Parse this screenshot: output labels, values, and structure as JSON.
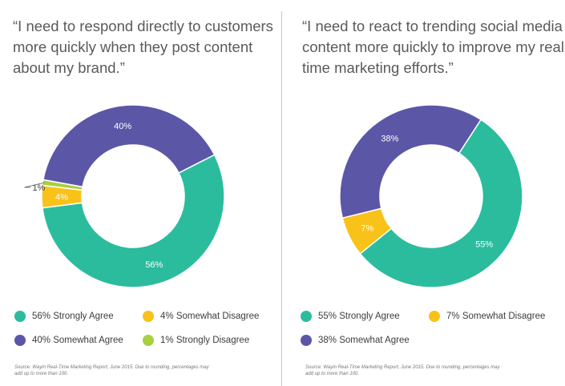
{
  "colors": {
    "strongly_agree": "#2bbc9e",
    "somewhat_agree": "#5c56a7",
    "somewhat_disagree": "#f9c218",
    "strongly_disagree": "#a8d040"
  },
  "panels": [
    {
      "quote_lines": [
        "“I need to respond directly to customers",
        "more quickly when they post content",
        "about my brand.”"
      ],
      "legend": [
        {
          "label": "56% Strongly Agree"
        },
        {
          "label": "4% Somewhat Disagree"
        },
        {
          "label": "40% Somewhat Agree"
        },
        {
          "label": "1% Strongly Disagree"
        }
      ],
      "source_lines": [
        "Source: Wayin Real-Time Marketing Report, June 2015.  Due to rounding, percentages may",
        "add up to more than 100."
      ]
    },
    {
      "quote_lines": [
        "“I need to react to trending social media",
        "content more quickly to improve my real-",
        "time marketing efforts.”"
      ],
      "legend": [
        {
          "label": "55% Strongly Agree"
        },
        {
          "label": "7% Somewhat Disagree"
        },
        {
          "label": "38% Somewhat Agree"
        }
      ],
      "source_lines": [
        "Source: Wayin Real-Time Marketing Report, June 2015.  Due to rounding, percentages may",
        "add up to more than 100."
      ]
    }
  ],
  "chart_data": [
    {
      "type": "pie",
      "variant": "donut",
      "categories": [
        "Strongly Agree",
        "Somewhat Disagree",
        "Strongly Disagree",
        "Somewhat Agree"
      ],
      "values": [
        56,
        4,
        1,
        40
      ],
      "labels": [
        "56%",
        "4%",
        "1%",
        "40%"
      ],
      "color_keys": [
        "strongly_agree",
        "somewhat_disagree",
        "strongly_disagree",
        "somewhat_agree"
      ]
    },
    {
      "type": "pie",
      "variant": "donut",
      "categories": [
        "Strongly Agree",
        "Somewhat Disagree",
        "Somewhat Agree"
      ],
      "values": [
        55,
        7,
        38
      ],
      "labels": [
        "55%",
        "7%",
        "38%"
      ],
      "color_keys": [
        "strongly_agree",
        "somewhat_disagree",
        "somewhat_agree"
      ]
    }
  ]
}
